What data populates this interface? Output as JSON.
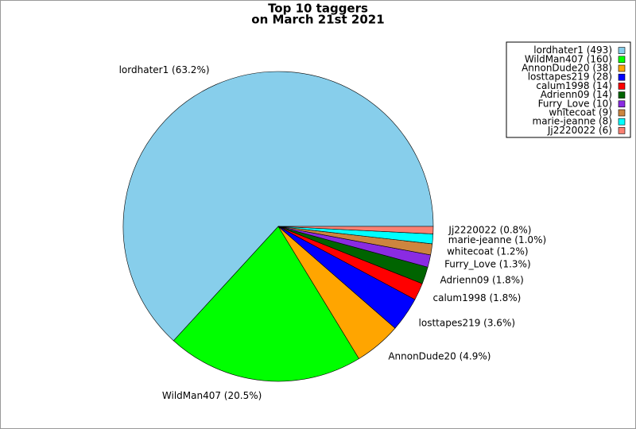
{
  "chart_data": {
    "type": "pie",
    "title": [
      "Top 10 taggers",
      "on March 21st 2021"
    ],
    "values": [
      493,
      160,
      38,
      28,
      14,
      14,
      10,
      9,
      8,
      6
    ],
    "labels": [
      "lordhater1 (63.2%)",
      "WildMan407 (20.5%)",
      "AnnonDude20 (4.9%)",
      "losttapes219 (3.6%)",
      "calum1998 (1.8%)",
      "Adrienn09 (1.8%)",
      "Furry_Love (1.3%)",
      "whitecoat (1.2%)",
      "marie-jeanne (1.0%)",
      "Jj2220022 (0.8%)"
    ],
    "legend": [
      "lordhater1 (493)",
      "WildMan407 (160)",
      "AnnonDude20 (38)",
      "losttapes219 (28)",
      "calum1998 (14)",
      "Adrienn09 (14)",
      "Furry_Love (10)",
      "whitecoat (9)",
      "marie-jeanne (8)",
      "Jj2220022 (6)"
    ],
    "colors": [
      "#87ceeb",
      "#00ff00",
      "#ffa500",
      "#0000ff",
      "#ff0000",
      "#006400",
      "#8a2be2",
      "#cd853f",
      "#00ffff",
      "#fa8072"
    ],
    "legend_position": "upper right"
  }
}
